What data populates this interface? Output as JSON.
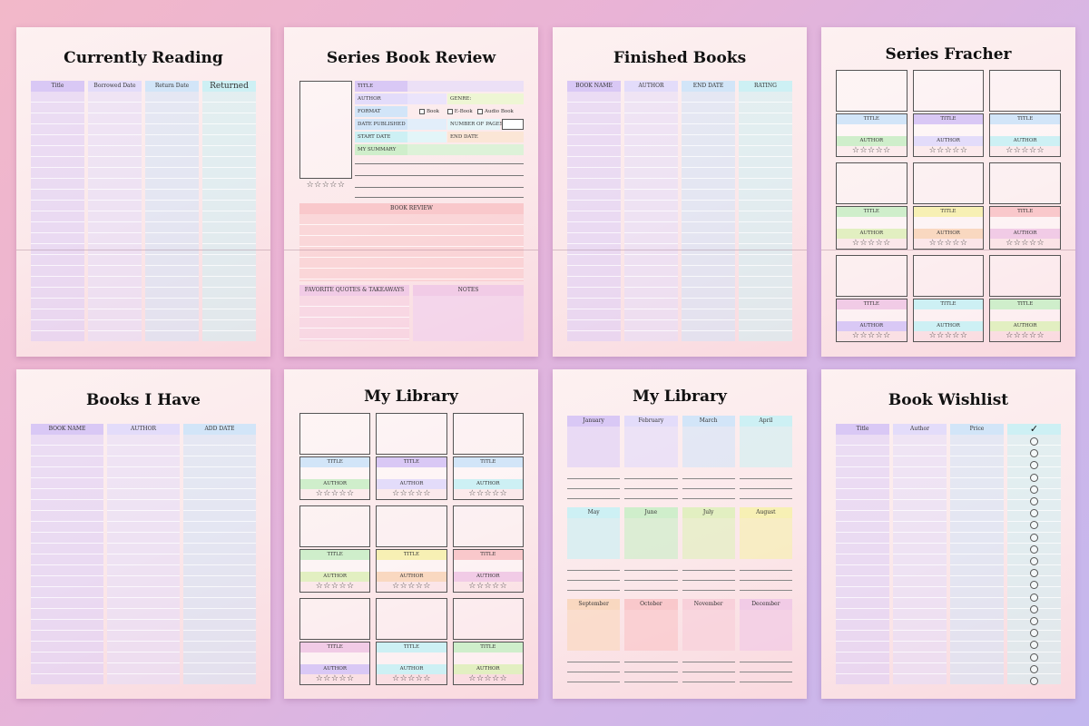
{
  "currently_reading": {
    "title": "Currently Reading",
    "columns": [
      "Title",
      "Borrowed Date",
      "Return Date",
      "Returned"
    ]
  },
  "series_review": {
    "title": "Series Book Review",
    "rating_stars": "☆☆☆☆☆",
    "labels": {
      "title": "TITLE",
      "author": "AUTHOR",
      "genre": "GENRE:",
      "format": "FORMAT",
      "book": "Book",
      "ebook": "E-Book",
      "audiobook": "Audio Book",
      "date_published": "DATE PUBLISHED",
      "pages": "NUMBER OF PAGES",
      "start_date": "START DATE",
      "end_date": "END DATE",
      "summary": "MY SUMMARY",
      "review": "BOOK REVIEW",
      "quotes": "FAVORITE QUOTES & TAKEAWAYS",
      "notes": "NOTES"
    }
  },
  "finished_books": {
    "title": "Finished Books",
    "columns": [
      "BOOK NAME",
      "AUTHOR",
      "END DATE",
      "RATING"
    ]
  },
  "series_tracker": {
    "title": "Series Fracher",
    "title_label": "TITLE",
    "author_label": "AUTHOR",
    "stars": "☆☆☆☆☆"
  },
  "books_i_have": {
    "title": "Books I Have",
    "columns": [
      "BOOK NAME",
      "AUTHOR",
      "ADD DATE"
    ]
  },
  "my_library_cards": {
    "title": "My Library",
    "title_label": "TITLE",
    "author_label": "AUTHOR",
    "stars": "☆☆☆☆☆"
  },
  "my_library_months": {
    "title": "My Library",
    "months": [
      "January",
      "February",
      "March",
      "April",
      "May",
      "June",
      "July",
      "August",
      "September",
      "October",
      "November",
      "December"
    ]
  },
  "book_wishlist": {
    "title": "Book Wishlist",
    "columns": [
      "Title",
      "Author",
      "Price",
      "✓"
    ]
  },
  "colors": {
    "background_start": "#f2b8c9",
    "background_end": "#c3b7ee",
    "page": "#fbe8ea"
  }
}
